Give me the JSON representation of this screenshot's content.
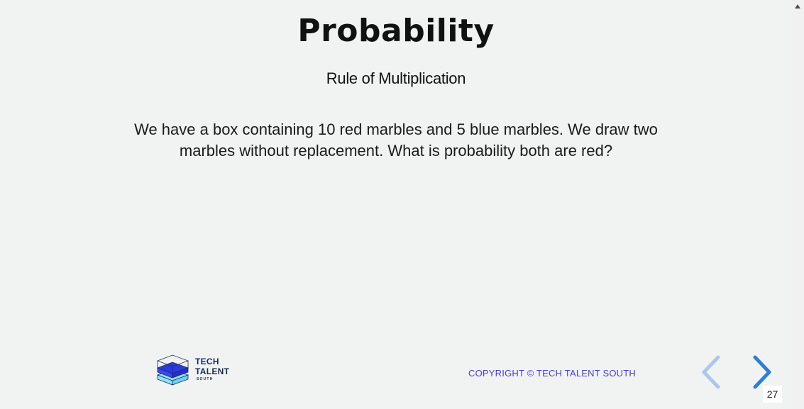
{
  "slide": {
    "title": "Probability",
    "subtitle": "Rule of Multiplication",
    "body": "We have a box containing 10 red marbles and 5 blue marbles. We draw two marbles without replacement. What is probability both are red?",
    "slide_number": "27"
  },
  "footer": {
    "logo": {
      "line1": "TECH",
      "line2": "TALENT",
      "line3": "SOUTH"
    },
    "copyright": "COPYRIGHT © TECH TALENT SOUTH"
  },
  "navigation": {
    "prev_icon": "chevron-left-icon",
    "next_icon": "chevron-right-icon"
  },
  "colors": {
    "background": "#f1f3f2",
    "copyright_text": "#4640d6",
    "nav_prev": "#a9c8ee",
    "nav_next": "#2f7fd6",
    "logo_blue": "#2d39e0",
    "logo_cyan": "#8fe3f4"
  }
}
